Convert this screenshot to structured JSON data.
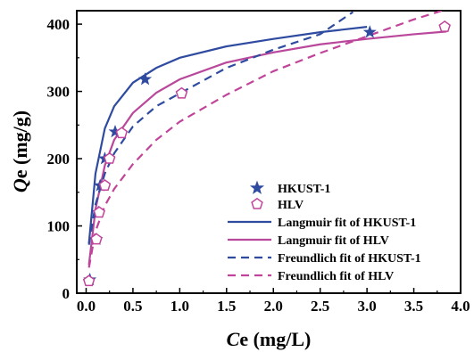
{
  "chart_data": {
    "type": "scatter",
    "xlabel_italic": "C",
    "xlabel_rest": "e (mg/L)",
    "ylabel_italic": "Q",
    "ylabel_rest": "e (mg/g)",
    "xlim": [
      -0.1,
      4.0
    ],
    "ylim": [
      0,
      420
    ],
    "x_ticks": [
      0.0,
      0.5,
      1.0,
      1.5,
      2.0,
      2.5,
      3.0,
      3.5,
      4.0
    ],
    "x_tick_labels": [
      "0.0",
      "0.5",
      "1.0",
      "1.5",
      "2.0",
      "2.5",
      "3.0",
      "3.5",
      "4.0"
    ],
    "y_ticks": [
      0,
      100,
      200,
      300,
      400
    ],
    "y_tick_labels": [
      "0",
      "100",
      "200",
      "300",
      "400"
    ],
    "legend_position": "lower-right",
    "series": [
      {
        "name": "HKUST-1",
        "kind": "points",
        "marker": "star",
        "color": "#2f4ba0",
        "points": [
          [
            0.04,
            20
          ],
          [
            0.11,
            80
          ],
          [
            0.13,
            120
          ],
          [
            0.15,
            160
          ],
          [
            0.2,
            200
          ],
          [
            0.31,
            240
          ],
          [
            0.63,
            318
          ],
          [
            3.03,
            388
          ]
        ]
      },
      {
        "name": "HLV",
        "kind": "points",
        "marker": "pentagon",
        "color": "#c0449a",
        "points": [
          [
            0.03,
            18
          ],
          [
            0.11,
            80
          ],
          [
            0.14,
            120
          ],
          [
            0.2,
            160
          ],
          [
            0.25,
            200
          ],
          [
            0.38,
            238
          ],
          [
            1.02,
            297
          ],
          [
            3.83,
            396
          ]
        ]
      },
      {
        "name": "Langmuir fit of HKUST-1",
        "kind": "line",
        "dash": "solid",
        "color": "#2f4ba0",
        "points": [
          [
            0.03,
            74
          ],
          [
            0.1,
            178
          ],
          [
            0.2,
            245
          ],
          [
            0.3,
            278
          ],
          [
            0.5,
            313
          ],
          [
            0.75,
            335
          ],
          [
            1.0,
            350
          ],
          [
            1.5,
            367
          ],
          [
            2.0,
            378
          ],
          [
            2.5,
            388
          ],
          [
            3.0,
            396
          ]
        ]
      },
      {
        "name": "Langmuir fit of HLV",
        "kind": "line",
        "dash": "solid",
        "color": "#b9479b",
        "points": [
          [
            0.03,
            42
          ],
          [
            0.1,
            125
          ],
          [
            0.2,
            190
          ],
          [
            0.3,
            228
          ],
          [
            0.5,
            268
          ],
          [
            0.75,
            298
          ],
          [
            1.0,
            318
          ],
          [
            1.5,
            343
          ],
          [
            2.0,
            358
          ],
          [
            2.5,
            370
          ],
          [
            3.0,
            378
          ],
          [
            3.5,
            385
          ],
          [
            3.85,
            389
          ]
        ]
      },
      {
        "name": "Freundlich fit of HKUST-1",
        "kind": "line",
        "dash": "dashed",
        "color": "#2f4ba0",
        "points": [
          [
            0.03,
            72
          ],
          [
            0.1,
            132
          ],
          [
            0.2,
            178
          ],
          [
            0.3,
            208
          ],
          [
            0.5,
            248
          ],
          [
            0.75,
            278
          ],
          [
            1.0,
            297
          ],
          [
            1.5,
            335
          ],
          [
            2.0,
            362
          ],
          [
            2.5,
            385
          ],
          [
            2.85,
            418
          ]
        ]
      },
      {
        "name": "Freundlich fit of HLV",
        "kind": "line",
        "dash": "dashed",
        "color": "#c0449a",
        "points": [
          [
            0.03,
            38
          ],
          [
            0.1,
            92
          ],
          [
            0.2,
            130
          ],
          [
            0.3,
            155
          ],
          [
            0.5,
            192
          ],
          [
            0.75,
            228
          ],
          [
            1.0,
            255
          ],
          [
            1.5,
            295
          ],
          [
            2.0,
            330
          ],
          [
            2.5,
            357
          ],
          [
            3.0,
            382
          ],
          [
            3.5,
            407
          ],
          [
            3.8,
            420
          ]
        ]
      }
    ]
  }
}
